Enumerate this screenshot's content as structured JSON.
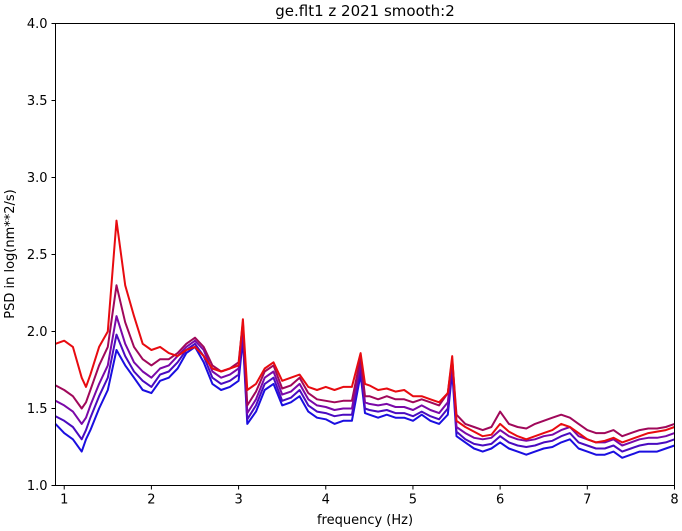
{
  "chart_data": {
    "type": "line",
    "title": "ge.flt1 z 2021 smooth:2",
    "xlabel": "frequency (Hz)",
    "ylabel": "PSD in log(nm**2/s)",
    "xlim": [
      0.9,
      8.0
    ],
    "ylim": [
      1.0,
      4.0
    ],
    "xticks": [
      1,
      2,
      3,
      4,
      5,
      6,
      7,
      8
    ],
    "yticks": [
      1.0,
      1.5,
      2.0,
      2.5,
      3.0,
      3.5,
      4.0
    ],
    "ytick_labels": [
      "1.0",
      "1.5",
      "2.0",
      "2.5",
      "3.0",
      "3.5",
      "4.0"
    ],
    "grid": false,
    "x": [
      0.9,
      1.0,
      1.1,
      1.2,
      1.25,
      1.3,
      1.4,
      1.5,
      1.6,
      1.7,
      1.8,
      1.9,
      2.0,
      2.1,
      2.2,
      2.3,
      2.4,
      2.5,
      2.6,
      2.7,
      2.8,
      2.9,
      3.0,
      3.05,
      3.1,
      3.2,
      3.3,
      3.4,
      3.5,
      3.6,
      3.7,
      3.8,
      3.9,
      4.0,
      4.1,
      4.2,
      4.3,
      4.4,
      4.45,
      4.5,
      4.6,
      4.7,
      4.8,
      4.9,
      5.0,
      5.1,
      5.2,
      5.3,
      5.4,
      5.45,
      5.5,
      5.6,
      5.7,
      5.8,
      5.9,
      6.0,
      6.1,
      6.2,
      6.3,
      6.4,
      6.5,
      6.6,
      6.7,
      6.8,
      6.9,
      7.0,
      7.1,
      7.2,
      7.3,
      7.4,
      7.5,
      7.6,
      7.7,
      7.8,
      7.9,
      8.0
    ],
    "series": [
      {
        "color": "#1a0ee0",
        "values": [
          1.4,
          1.34,
          1.3,
          1.22,
          1.3,
          1.36,
          1.5,
          1.62,
          1.88,
          1.78,
          1.7,
          1.62,
          1.6,
          1.68,
          1.7,
          1.76,
          1.86,
          1.9,
          1.8,
          1.66,
          1.62,
          1.64,
          1.68,
          1.95,
          1.4,
          1.48,
          1.62,
          1.66,
          1.52,
          1.54,
          1.58,
          1.48,
          1.44,
          1.43,
          1.4,
          1.42,
          1.42,
          1.72,
          1.47,
          1.46,
          1.44,
          1.46,
          1.44,
          1.44,
          1.42,
          1.46,
          1.42,
          1.4,
          1.46,
          1.74,
          1.32,
          1.28,
          1.24,
          1.22,
          1.24,
          1.28,
          1.24,
          1.22,
          1.2,
          1.22,
          1.24,
          1.25,
          1.28,
          1.3,
          1.24,
          1.22,
          1.2,
          1.2,
          1.22,
          1.18,
          1.2,
          1.22,
          1.22,
          1.22,
          1.24,
          1.26
        ]
      },
      {
        "color": "#4a0bc0",
        "values": [
          1.45,
          1.42,
          1.38,
          1.3,
          1.36,
          1.44,
          1.58,
          1.7,
          1.98,
          1.84,
          1.74,
          1.68,
          1.64,
          1.72,
          1.74,
          1.8,
          1.88,
          1.92,
          1.84,
          1.7,
          1.66,
          1.68,
          1.72,
          1.98,
          1.43,
          1.52,
          1.66,
          1.7,
          1.55,
          1.57,
          1.62,
          1.52,
          1.48,
          1.47,
          1.45,
          1.46,
          1.46,
          1.76,
          1.5,
          1.49,
          1.48,
          1.49,
          1.47,
          1.47,
          1.45,
          1.48,
          1.45,
          1.43,
          1.5,
          1.77,
          1.35,
          1.3,
          1.27,
          1.26,
          1.27,
          1.32,
          1.28,
          1.26,
          1.25,
          1.26,
          1.28,
          1.29,
          1.32,
          1.34,
          1.28,
          1.26,
          1.24,
          1.24,
          1.26,
          1.22,
          1.24,
          1.26,
          1.27,
          1.27,
          1.28,
          1.3
        ]
      },
      {
        "color": "#7a08a8",
        "values": [
          1.55,
          1.52,
          1.48,
          1.4,
          1.44,
          1.52,
          1.66,
          1.78,
          2.1,
          1.92,
          1.8,
          1.74,
          1.7,
          1.76,
          1.78,
          1.84,
          1.9,
          1.94,
          1.88,
          1.74,
          1.7,
          1.72,
          1.76,
          2.02,
          1.47,
          1.56,
          1.7,
          1.74,
          1.59,
          1.61,
          1.66,
          1.56,
          1.52,
          1.51,
          1.49,
          1.5,
          1.5,
          1.8,
          1.54,
          1.53,
          1.52,
          1.53,
          1.51,
          1.51,
          1.49,
          1.52,
          1.49,
          1.47,
          1.54,
          1.8,
          1.38,
          1.34,
          1.31,
          1.3,
          1.31,
          1.36,
          1.32,
          1.3,
          1.29,
          1.3,
          1.32,
          1.33,
          1.36,
          1.38,
          1.32,
          1.3,
          1.28,
          1.28,
          1.3,
          1.26,
          1.28,
          1.3,
          1.31,
          1.31,
          1.32,
          1.34
        ]
      },
      {
        "color": "#a0085a",
        "values": [
          1.65,
          1.62,
          1.58,
          1.5,
          1.54,
          1.62,
          1.78,
          1.9,
          2.3,
          2.06,
          1.9,
          1.82,
          1.78,
          1.82,
          1.82,
          1.86,
          1.92,
          1.96,
          1.9,
          1.78,
          1.74,
          1.76,
          1.8,
          2.06,
          1.52,
          1.61,
          1.74,
          1.78,
          1.63,
          1.65,
          1.7,
          1.6,
          1.56,
          1.55,
          1.54,
          1.55,
          1.55,
          1.83,
          1.58,
          1.58,
          1.56,
          1.58,
          1.56,
          1.56,
          1.54,
          1.56,
          1.54,
          1.52,
          1.6,
          1.82,
          1.46,
          1.4,
          1.38,
          1.36,
          1.38,
          1.48,
          1.4,
          1.38,
          1.37,
          1.4,
          1.42,
          1.44,
          1.46,
          1.44,
          1.4,
          1.36,
          1.34,
          1.34,
          1.36,
          1.32,
          1.34,
          1.36,
          1.37,
          1.37,
          1.38,
          1.4
        ]
      },
      {
        "color": "#e80b10",
        "values": [
          1.92,
          1.94,
          1.9,
          1.7,
          1.64,
          1.72,
          1.9,
          2.0,
          2.72,
          2.3,
          2.1,
          1.92,
          1.88,
          1.9,
          1.86,
          1.84,
          1.88,
          1.9,
          1.84,
          1.76,
          1.74,
          1.76,
          1.78,
          2.08,
          1.62,
          1.66,
          1.76,
          1.8,
          1.68,
          1.7,
          1.72,
          1.64,
          1.62,
          1.64,
          1.62,
          1.64,
          1.64,
          1.86,
          1.66,
          1.65,
          1.62,
          1.63,
          1.61,
          1.62,
          1.58,
          1.58,
          1.56,
          1.54,
          1.6,
          1.84,
          1.42,
          1.38,
          1.35,
          1.32,
          1.33,
          1.4,
          1.35,
          1.32,
          1.3,
          1.32,
          1.34,
          1.36,
          1.4,
          1.38,
          1.34,
          1.3,
          1.28,
          1.29,
          1.31,
          1.28,
          1.3,
          1.32,
          1.34,
          1.35,
          1.36,
          1.38
        ]
      }
    ]
  }
}
